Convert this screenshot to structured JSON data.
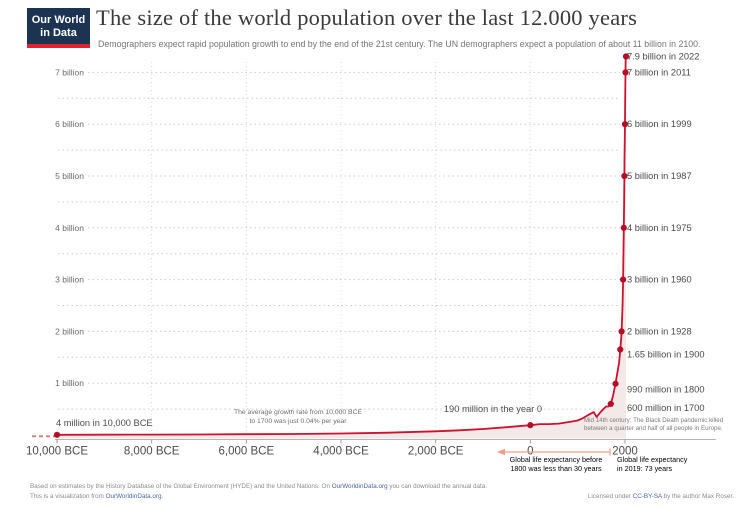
{
  "header": {
    "logo_line1": "Our World",
    "logo_line2": "in Data",
    "title": "The size of the world population over the last 12.000 years",
    "subtitle": "Demographers expect rapid population growth to end by the end of the 21st century. The UN demographers expect a population of about 11 billion in 2100."
  },
  "chart_data": {
    "type": "area",
    "title": "World population over the last 12,000 years",
    "x": {
      "range": [
        -10000,
        2022
      ],
      "ticks": [
        {
          "year": -10000,
          "label": "10,000 BCE"
        },
        {
          "year": -8000,
          "label": "8,000 BCE"
        },
        {
          "year": -6000,
          "label": "6,000 BCE"
        },
        {
          "year": -4000,
          "label": "4,000 BCE"
        },
        {
          "year": -2000,
          "label": "2,000 BCE"
        },
        {
          "year": 0,
          "label": "0"
        },
        {
          "year": 2000,
          "label": "2000"
        }
      ]
    },
    "y": {
      "unit": "billion people",
      "range": [
        0,
        7.35
      ],
      "gridline_step": 0.5,
      "ticks": [
        {
          "value": 7,
          "label": "7 billion"
        },
        {
          "value": 6,
          "label": "6 billion"
        },
        {
          "value": 5,
          "label": "5 billion"
        },
        {
          "value": 4,
          "label": "4 billion"
        },
        {
          "value": 3,
          "label": "3 billion"
        },
        {
          "value": 2,
          "label": "2 billion"
        },
        {
          "value": 1,
          "label": "1 billion"
        }
      ]
    },
    "points": [
      [
        -10000,
        0.004
      ],
      [
        -9000,
        0.005
      ],
      [
        -8000,
        0.007
      ],
      [
        -7000,
        0.01
      ],
      [
        -6000,
        0.015
      ],
      [
        -5000,
        0.02
      ],
      [
        -4000,
        0.028
      ],
      [
        -3000,
        0.045
      ],
      [
        -2000,
        0.072
      ],
      [
        -1500,
        0.09
      ],
      [
        -1000,
        0.115
      ],
      [
        -500,
        0.15
      ],
      [
        0,
        0.19
      ],
      [
        200,
        0.21
      ],
      [
        400,
        0.21
      ],
      [
        600,
        0.22
      ],
      [
        800,
        0.25
      ],
      [
        1000,
        0.28
      ],
      [
        1100,
        0.32
      ],
      [
        1250,
        0.4
      ],
      [
        1340,
        0.443
      ],
      [
        1400,
        0.35
      ],
      [
        1500,
        0.46
      ],
      [
        1600,
        0.55
      ],
      [
        1650,
        0.55
      ],
      [
        1700,
        0.6
      ],
      [
        1750,
        0.77
      ],
      [
        1800,
        0.99
      ],
      [
        1850,
        1.26
      ],
      [
        1875,
        1.4
      ],
      [
        1900,
        1.65
      ],
      [
        1920,
        1.86
      ],
      [
        1928,
        2.0
      ],
      [
        1940,
        2.3
      ],
      [
        1950,
        2.53
      ],
      [
        1960,
        3.0
      ],
      [
        1970,
        3.7
      ],
      [
        1975,
        4.0
      ],
      [
        1980,
        4.46
      ],
      [
        1987,
        5.0
      ],
      [
        1990,
        5.33
      ],
      [
        1999,
        6.0
      ],
      [
        2005,
        6.5
      ],
      [
        2011,
        7.0
      ],
      [
        2015,
        7.35
      ],
      [
        2022,
        7.9
      ]
    ],
    "milestones": [
      {
        "year": 2022,
        "population_billion": 7.9,
        "label": "7.9 billion in 2022"
      },
      {
        "year": 2011,
        "population_billion": 7.0,
        "label": "7 billion in 2011"
      },
      {
        "year": 1999,
        "population_billion": 6.0,
        "label": "6 billion in 1999"
      },
      {
        "year": 1987,
        "population_billion": 5.0,
        "label": "5 billion in 1987"
      },
      {
        "year": 1975,
        "population_billion": 4.0,
        "label": "4 billion in 1975"
      },
      {
        "year": 1960,
        "population_billion": 3.0,
        "label": "3 billion in 1960"
      },
      {
        "year": 1928,
        "population_billion": 2.0,
        "label": "2 billion in 1928"
      },
      {
        "year": 1900,
        "population_billion": 1.65,
        "label": "1.65 billion in 1900"
      },
      {
        "year": 1800,
        "population_billion": 0.99,
        "label": "990 million in 1800"
      },
      {
        "year": 1700,
        "population_billion": 0.6,
        "label": "600 million in 1700"
      }
    ],
    "unlabeled_markers": [
      {
        "year": 0,
        "population_billion": 0.19
      },
      {
        "year": -10000,
        "population_billion": 0.004
      }
    ],
    "colors": {
      "line": "#ce112d",
      "dot": "#b50d26",
      "area": "#f3e9e8",
      "pre_history_dash": "#da7a70",
      "grid": "#cccccc",
      "vgrid": "#d9d9d9",
      "axis": "#b5b5b5",
      "annotation_red": "#d75a41",
      "arrow": "#ef9d88"
    },
    "legend_position": "none",
    "grid": "dotted"
  },
  "annotations": {
    "start_point": "4 million in 10,000 BCE",
    "growth_line1": "The average growth rate from 10,000 BCE",
    "growth_line2": "to 1700 was just 0.04% per year",
    "year_zero": "190 million in the year 0",
    "black_death_line1": "Mid 14th century: The Black Death pandemic killed",
    "black_death_line2": "between a quarter and half of all people in Europe.",
    "life_exp_before_line1": "Global life expectancy before",
    "life_exp_before_line2": "1800 was less than 30 years",
    "life_exp_2019_line1": "Global life expectancy",
    "life_exp_2019_line2": "in 2019: 73 years"
  },
  "footer": {
    "line1_pre": "Based on estimates by the History Database of the Global Environment (HYDE) and the United Nations. On ",
    "line1_link": "OurWorldinData.org",
    "line1_post": " you can download the annual data.",
    "line2_pre": "This is a visualization from ",
    "line2_link": "OurWorldinData.org",
    "line2_post": ".",
    "license_pre": "Licensed under ",
    "license_link": "CC-BY-SA",
    "license_post": " by the author Max Roser."
  }
}
